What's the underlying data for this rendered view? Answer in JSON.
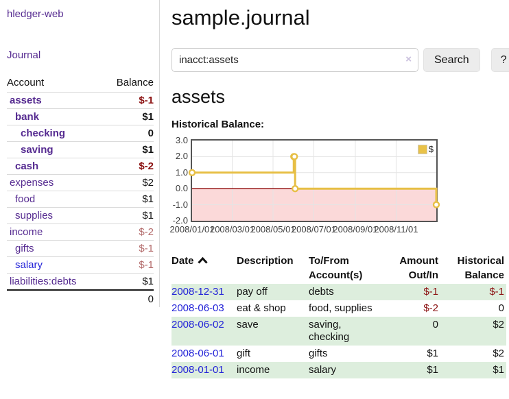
{
  "app": {
    "brand": "hledger-web",
    "nav_journal": "Journal"
  },
  "sidebar": {
    "headers": {
      "account": "Account",
      "balance": "Balance"
    },
    "accounts": [
      {
        "name": "assets",
        "balance": "$-1",
        "indent": 1,
        "bold": true
      },
      {
        "name": "bank",
        "balance": "$1",
        "indent": 2,
        "bold": true
      },
      {
        "name": "checking",
        "balance": "0",
        "indent": 3,
        "bold": true
      },
      {
        "name": "saving",
        "balance": "$1",
        "indent": 3,
        "bold": true
      },
      {
        "name": "cash",
        "balance": "$-2",
        "indent": 2,
        "bold": true
      },
      {
        "name": "expenses",
        "balance": "$2",
        "indent": 1,
        "bold": false
      },
      {
        "name": "food",
        "balance": "$1",
        "indent": 2,
        "bold": false
      },
      {
        "name": "supplies",
        "balance": "$1",
        "indent": 2,
        "bold": false
      },
      {
        "name": "income",
        "balance": "$-2",
        "indent": 1,
        "bold": false
      },
      {
        "name": "gifts",
        "balance": "$-1",
        "indent": 2,
        "bold": false
      },
      {
        "name": "salary",
        "balance": "$-1",
        "indent": 2,
        "bold": false,
        "unvisited": true
      },
      {
        "name": "liabilities:debts",
        "balance": "$1",
        "indent": 1,
        "bold": false
      }
    ],
    "total": "0"
  },
  "header": {
    "title": "sample.journal"
  },
  "search": {
    "value": "inacct:assets",
    "clear_icon": "×",
    "button_label": "Search",
    "help_label": "?"
  },
  "register": {
    "heading": "assets",
    "chart_title": "Historical Balance:",
    "columns": [
      {
        "lines": [
          "Date"
        ],
        "align": "left",
        "sorted": "ascending"
      },
      {
        "lines": [
          "Description"
        ],
        "align": "left"
      },
      {
        "lines": [
          "To/From",
          "Account(s)"
        ],
        "align": "left"
      },
      {
        "lines": [
          "Amount",
          "Out/In"
        ],
        "align": "right"
      },
      {
        "lines": [
          "Historical",
          "Balance"
        ],
        "align": "right"
      }
    ],
    "rows": [
      {
        "date": "2008-12-31",
        "description": "pay off",
        "accounts": "debts",
        "amount": "$-1",
        "balance": "$-1"
      },
      {
        "date": "2008-06-03",
        "description": "eat & shop",
        "accounts": "food, supplies",
        "amount": "$-2",
        "balance": "0"
      },
      {
        "date": "2008-06-02",
        "description": "save",
        "accounts": "saving, checking",
        "amount": "0",
        "balance": "$2"
      },
      {
        "date": "2008-06-01",
        "description": "gift",
        "accounts": "gifts",
        "amount": "$1",
        "balance": "$2"
      },
      {
        "date": "2008-01-01",
        "description": "income",
        "accounts": "salary",
        "amount": "$1",
        "balance": "$1"
      }
    ]
  },
  "chart_data": {
    "type": "line",
    "step": true,
    "title": "Historical Balance:",
    "series": [
      {
        "name": "$",
        "color": "#e7bf45",
        "points": [
          {
            "date": "2008-01-01",
            "day": 0,
            "value": 1
          },
          {
            "date": "2008-06-01",
            "day": 152,
            "value": 2
          },
          {
            "date": "2008-06-02",
            "day": 153,
            "value": 2
          },
          {
            "date": "2008-06-03",
            "day": 154,
            "value": 0
          },
          {
            "date": "2008-12-31",
            "day": 365,
            "value": -1
          }
        ]
      }
    ],
    "x_ticks": [
      {
        "label": "2008/01/01",
        "day": 0
      },
      {
        "label": "2008/03/01",
        "day": 60
      },
      {
        "label": "2008/05/01",
        "day": 121
      },
      {
        "label": "2008/07/01",
        "day": 182
      },
      {
        "label": "2008/09/01",
        "day": 244
      },
      {
        "label": "2008/11/01",
        "day": 305
      }
    ],
    "y_ticks": [
      3,
      2,
      1,
      0,
      -1,
      -2
    ],
    "ylim": [
      -2,
      3
    ],
    "xlim_days": [
      0,
      365
    ],
    "grid": true,
    "legend_position": "top-right",
    "negative_region_fill": "#fbd9d9",
    "zero_line_color": "#8b0000"
  },
  "colors": {
    "accent_purple": "#552a90",
    "link_blue": "#2323d8",
    "negative_strong": "#8b1111",
    "negative_soft": "#b36b6b",
    "stripe_green": "#ddeedd",
    "chart_line": "#e7bf45",
    "grid_line": "#e4e4e4"
  }
}
